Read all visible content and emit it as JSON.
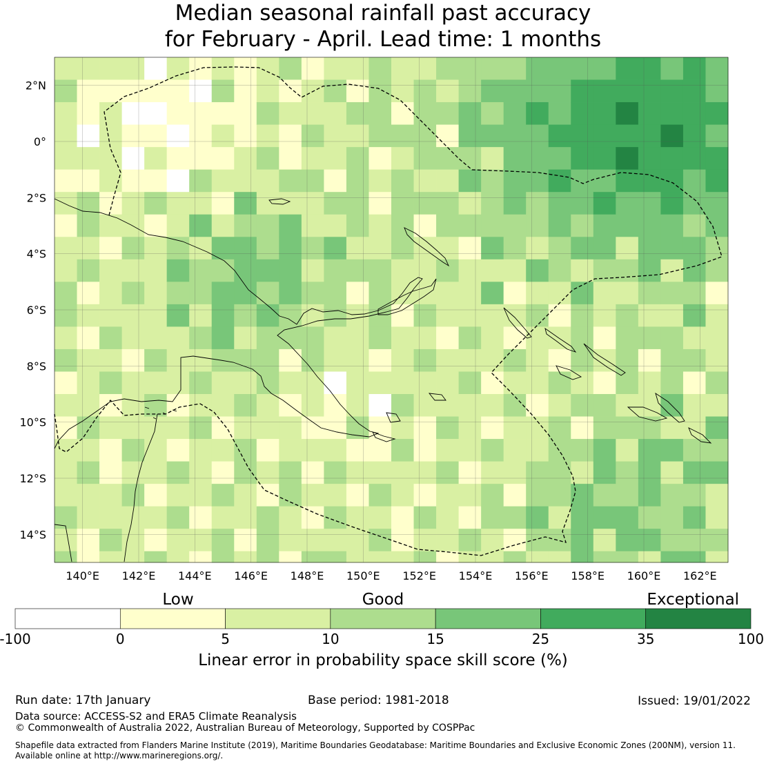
{
  "title": {
    "line1": "Median seasonal rainfall past accuracy",
    "line2": "for February - April. Lead time: 1 months"
  },
  "map": {
    "lon_range": [
      139,
      163
    ],
    "lat_range": [
      -15,
      3
    ],
    "lon_ticks": [
      "140°E",
      "142°E",
      "144°E",
      "146°E",
      "148°E",
      "150°E",
      "152°E",
      "154°E",
      "156°E",
      "158°E",
      "160°E",
      "162°E"
    ],
    "lat_ticks": [
      "2°N",
      "0°",
      "2°S",
      "4°S",
      "6°S",
      "8°S",
      "10°S",
      "12°S",
      "14°S"
    ],
    "region": "Papua New Guinea",
    "grid": true
  },
  "colorbar": {
    "categories": [
      "Low",
      "Good",
      "Exceptional"
    ],
    "bounds": [
      "-100",
      "0",
      "5",
      "10",
      "15",
      "25",
      "35",
      "100"
    ],
    "colors": [
      "#ffffff",
      "#ffffcc",
      "#d9f0a3",
      "#addd8e",
      "#78c679",
      "#41ab5d",
      "#238443"
    ],
    "label": "Linear error in probability space skill score (%)"
  },
  "footer": {
    "run_date": "Run date: 17th January",
    "base_period": "Base period: 1981-2018",
    "issued": "Issued: 19/01/2022",
    "data_source": "Data source: ACCESS-S2 and ERA5 Climate Reanalysis",
    "copyright": "© Commonwealth of Australia 2022, Australian Bureau of Meteorology, Supported by COSPPac",
    "shapefile_line1": "Shapefile data extracted from Flanders Marine Institute (2019), Maritime Boundaries Geodatabase: Maritime Boundaries and Exclusive Economic Zones (200NM), version 11.",
    "shapefile_line2": "Available online at http://www.marineregions.org/."
  }
}
